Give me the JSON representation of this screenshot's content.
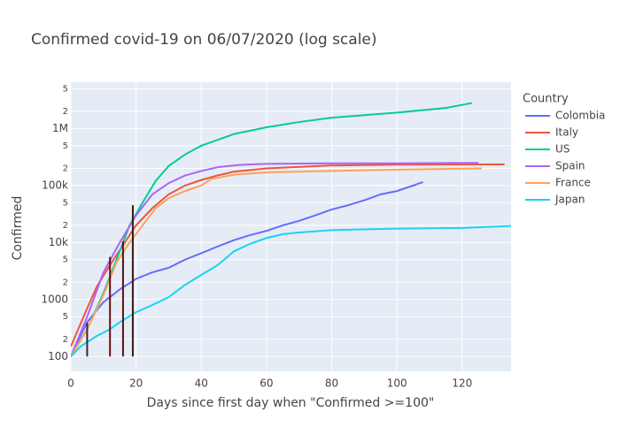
{
  "chart_data": {
    "type": "line",
    "title": "Confirmed covid-19 on 06/07/2020  (log scale)",
    "x_label": "Days since first day when \"Confirmed >=100\"",
    "y_label": "Confirmed",
    "legend_title": "Country",
    "legend_position": "right",
    "log_y": true,
    "grid": true,
    "xlim": [
      0,
      135
    ],
    "xticks": [
      0,
      20,
      40,
      60,
      80,
      100,
      120
    ],
    "ylim": [
      55,
      6500000
    ],
    "yticks": [
      100,
      {
        "value": 200,
        "label": "2"
      },
      {
        "value": 500,
        "label": "5"
      },
      1000,
      {
        "value": 2000,
        "label": "2"
      },
      {
        "value": 5000,
        "label": "5"
      },
      {
        "value": 10000,
        "label": "10k"
      },
      {
        "value": 20000,
        "label": "2"
      },
      {
        "value": 50000,
        "label": "5"
      },
      {
        "value": 100000,
        "label": "100k"
      },
      {
        "value": 200000,
        "label": "2"
      },
      {
        "value": 500000,
        "label": "5"
      },
      {
        "value": 1000000,
        "label": "1M"
      },
      {
        "value": 2000000,
        "label": "2"
      },
      {
        "value": 5000000,
        "label": "5"
      }
    ],
    "series": [
      {
        "name": "Colombia",
        "color": "#636efa",
        "x": [
          0,
          5,
          10,
          15,
          20,
          25,
          30,
          35,
          40,
          45,
          50,
          55,
          60,
          65,
          70,
          75,
          80,
          85,
          90,
          95,
          100,
          105,
          108
        ],
        "values": [
          100,
          400,
          900,
          1500,
          2300,
          3000,
          3600,
          5000,
          6500,
          8500,
          11000,
          13500,
          16000,
          20000,
          24000,
          30000,
          38000,
          45000,
          55000,
          70000,
          80000,
          100000,
          115000
        ]
      },
      {
        "name": "Italy",
        "color": "#ef553b",
        "x": [
          0,
          5,
          8,
          12,
          16,
          20,
          25,
          30,
          35,
          40,
          45,
          50,
          60,
          80,
          100,
          133
        ],
        "values": [
          150,
          700,
          1700,
          4000,
          9000,
          20000,
          40000,
          70000,
          100000,
          125000,
          150000,
          175000,
          200000,
          225000,
          232000,
          235000
        ]
      },
      {
        "name": "US",
        "color": "#00cc96",
        "x": [
          0,
          5,
          10,
          14,
          18,
          22,
          26,
          30,
          35,
          40,
          50,
          60,
          70,
          80,
          100,
          115,
          123
        ],
        "values": [
          100,
          300,
          1300,
          5000,
          20000,
          50000,
          120000,
          220000,
          350000,
          500000,
          800000,
          1050000,
          1300000,
          1550000,
          1900000,
          2300000,
          2800000
        ]
      },
      {
        "name": "Spain",
        "color": "#ab63fa",
        "x": [
          0,
          5,
          10,
          15,
          20,
          25,
          30,
          35,
          40,
          45,
          52,
          60,
          80,
          100,
          125
        ],
        "values": [
          100,
          500,
          3000,
          10000,
          30000,
          70000,
          110000,
          150000,
          180000,
          210000,
          230000,
          240000,
          245000,
          245000,
          250000
        ]
      },
      {
        "name": "France",
        "color": "#ffa15a",
        "x": [
          0,
          5,
          10,
          14,
          18,
          22,
          26,
          30,
          35,
          40,
          43,
          50,
          60,
          80,
          100,
          126
        ],
        "values": [
          100,
          300,
          1200,
          4500,
          10000,
          20000,
          40000,
          60000,
          80000,
          100000,
          130000,
          155000,
          170000,
          180000,
          190000,
          200000
        ]
      },
      {
        "name": "Japan",
        "color": "#19d3f3",
        "x": [
          0,
          3,
          8,
          12,
          15,
          20,
          25,
          30,
          35,
          40,
          45,
          50,
          55,
          60,
          65,
          70,
          80,
          100,
          120,
          135
        ],
        "values": [
          100,
          150,
          230,
          300,
          400,
          600,
          800,
          1100,
          1800,
          2700,
          4000,
          7000,
          9500,
          12000,
          14000,
          15000,
          16500,
          17500,
          18000,
          19500
        ]
      }
    ],
    "vlines": [
      {
        "x": 5,
        "y0": 100,
        "y": 390,
        "color": "#3a2a2a"
      },
      {
        "x": 12,
        "y0": 100,
        "y": 5600,
        "color": "#6b1010"
      },
      {
        "x": 16,
        "y0": 100,
        "y": 10500,
        "color": "#5a0f0f"
      },
      {
        "x": 19,
        "y0": 100,
        "y": 45000,
        "color": "#3a1a10"
      }
    ]
  }
}
